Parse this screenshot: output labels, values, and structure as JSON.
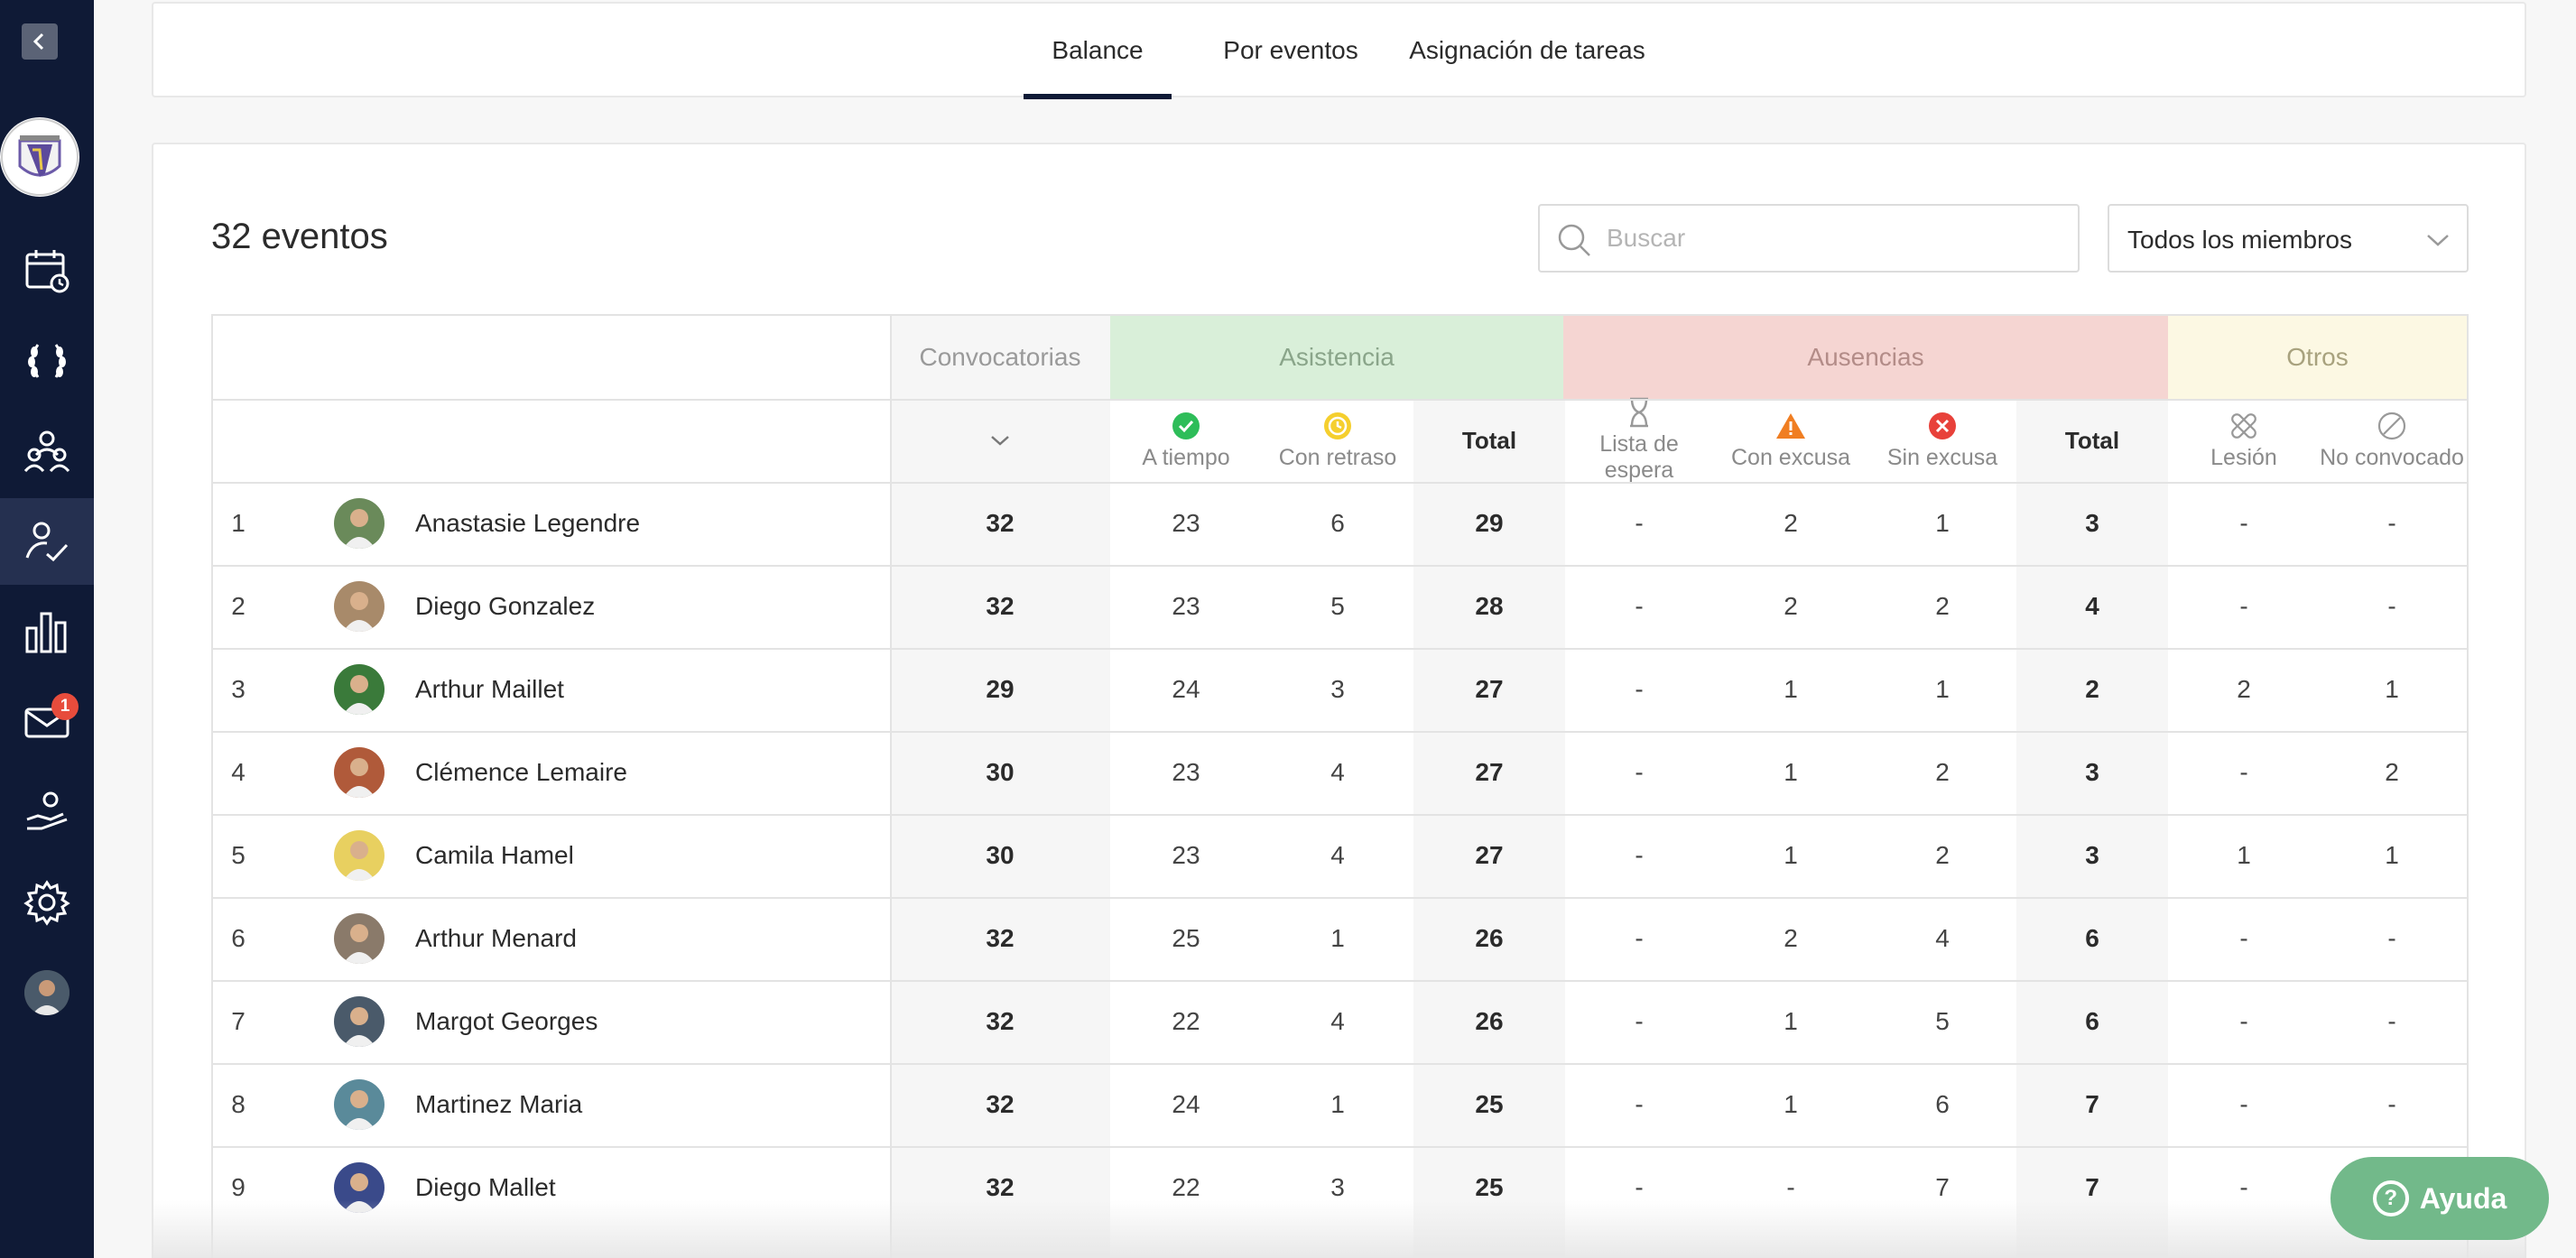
{
  "sidebar": {
    "notifications_badge": "1",
    "items": [
      {
        "name": "back-icon"
      },
      {
        "name": "calendar-icon"
      },
      {
        "name": "laurel-icon"
      },
      {
        "name": "team-icon"
      },
      {
        "name": "attendance-icon"
      },
      {
        "name": "stats-icon"
      },
      {
        "name": "mail-icon"
      },
      {
        "name": "volunteer-icon"
      },
      {
        "name": "settings-icon"
      }
    ]
  },
  "tabs": [
    {
      "label": "Balance",
      "active": true
    },
    {
      "label": "Por eventos",
      "active": false
    },
    {
      "label": "Asignación de tareas",
      "active": false
    }
  ],
  "summary": {
    "event_count": "32 eventos"
  },
  "search": {
    "placeholder": "Buscar"
  },
  "member_filter": {
    "selected": "Todos los miembros"
  },
  "table": {
    "groups": {
      "convocatorias": "Convocatorias",
      "asistencia": "Asistencia",
      "ausencias": "Ausencias",
      "otros": "Otros"
    },
    "subheaders": {
      "a_tiempo": "A tiempo",
      "con_retraso": "Con retraso",
      "total_asistencia": "Total",
      "lista_espera": "Lista de espera",
      "con_excusa": "Con excusa",
      "sin_excusa": "Sin excusa",
      "total_ausencias": "Total",
      "lesion": "Lesión",
      "no_convocado": "No convocado"
    },
    "colors": {
      "asistencia_bg": "#d9efd9",
      "ausencias_bg": "#f5d5d2",
      "otros_bg": "#fcf8e3",
      "shaded_col": "#f6f6f6"
    },
    "rows": [
      {
        "rank": "1",
        "name": "Anastasie Legendre",
        "convocatorias": "32",
        "a_tiempo": "23",
        "con_retraso": "6",
        "total_asistencia": "29",
        "lista_espera": "-",
        "con_excusa": "2",
        "sin_excusa": "1",
        "total_ausencias": "3",
        "lesion": "-",
        "no_convocado": "-"
      },
      {
        "rank": "2",
        "name": "Diego Gonzalez",
        "convocatorias": "32",
        "a_tiempo": "23",
        "con_retraso": "5",
        "total_asistencia": "28",
        "lista_espera": "-",
        "con_excusa": "2",
        "sin_excusa": "2",
        "total_ausencias": "4",
        "lesion": "-",
        "no_convocado": "-"
      },
      {
        "rank": "3",
        "name": "Arthur Maillet",
        "convocatorias": "29",
        "a_tiempo": "24",
        "con_retraso": "3",
        "total_asistencia": "27",
        "lista_espera": "-",
        "con_excusa": "1",
        "sin_excusa": "1",
        "total_ausencias": "2",
        "lesion": "2",
        "no_convocado": "1"
      },
      {
        "rank": "4",
        "name": "Clémence Lemaire",
        "convocatorias": "30",
        "a_tiempo": "23",
        "con_retraso": "4",
        "total_asistencia": "27",
        "lista_espera": "-",
        "con_excusa": "1",
        "sin_excusa": "2",
        "total_ausencias": "3",
        "lesion": "-",
        "no_convocado": "2"
      },
      {
        "rank": "5",
        "name": "Camila Hamel",
        "convocatorias": "30",
        "a_tiempo": "23",
        "con_retraso": "4",
        "total_asistencia": "27",
        "lista_espera": "-",
        "con_excusa": "1",
        "sin_excusa": "2",
        "total_ausencias": "3",
        "lesion": "1",
        "no_convocado": "1"
      },
      {
        "rank": "6",
        "name": "Arthur Menard",
        "convocatorias": "32",
        "a_tiempo": "25",
        "con_retraso": "1",
        "total_asistencia": "26",
        "lista_espera": "-",
        "con_excusa": "2",
        "sin_excusa": "4",
        "total_ausencias": "6",
        "lesion": "-",
        "no_convocado": "-"
      },
      {
        "rank": "7",
        "name": "Margot Georges",
        "convocatorias": "32",
        "a_tiempo": "22",
        "con_retraso": "4",
        "total_asistencia": "26",
        "lista_espera": "-",
        "con_excusa": "1",
        "sin_excusa": "5",
        "total_ausencias": "6",
        "lesion": "-",
        "no_convocado": "-"
      },
      {
        "rank": "8",
        "name": "Martinez Maria",
        "convocatorias": "32",
        "a_tiempo": "24",
        "con_retraso": "1",
        "total_asistencia": "25",
        "lista_espera": "-",
        "con_excusa": "1",
        "sin_excusa": "6",
        "total_ausencias": "7",
        "lesion": "-",
        "no_convocado": "-"
      },
      {
        "rank": "9",
        "name": "Diego Mallet",
        "convocatorias": "32",
        "a_tiempo": "22",
        "con_retraso": "3",
        "total_asistencia": "25",
        "lista_espera": "-",
        "con_excusa": "-",
        "sin_excusa": "7",
        "total_ausencias": "7",
        "lesion": "-",
        "no_convocado": "-"
      }
    ]
  },
  "help_button": {
    "label": "Ayuda"
  }
}
